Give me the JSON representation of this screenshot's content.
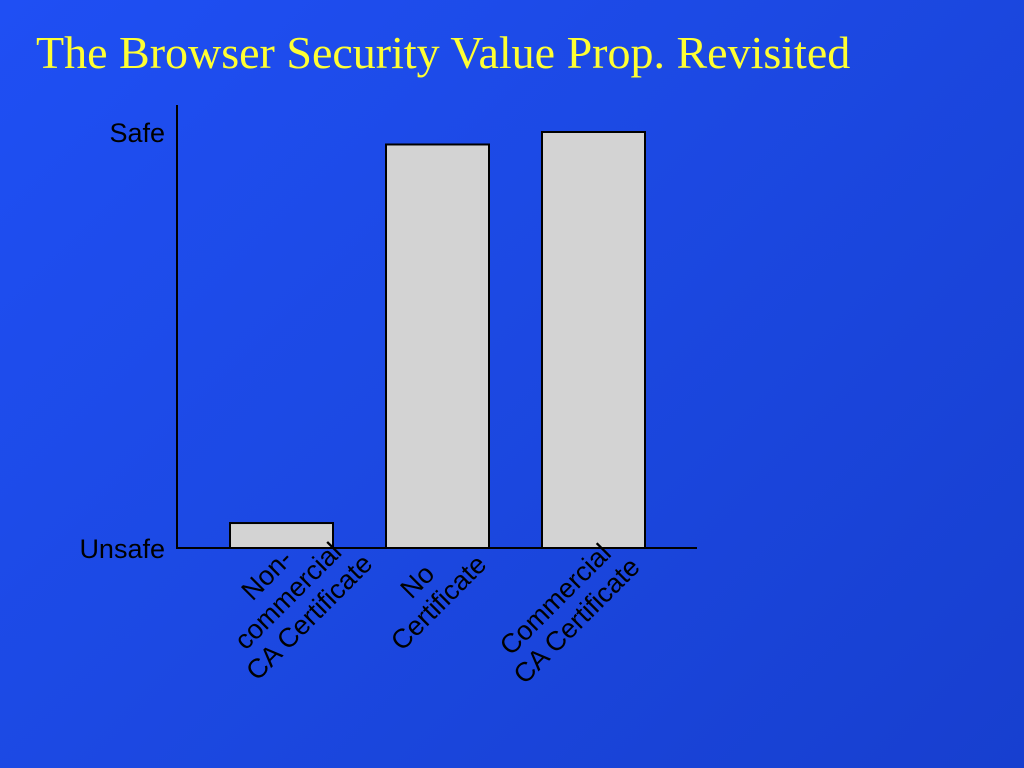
{
  "slide": {
    "title": "The Browser Security Value Prop. Revisited"
  },
  "chart_data": {
    "type": "bar",
    "title": "The Browser Security Value Prop. Revisited",
    "xlabel": "",
    "ylabel": "",
    "y_tick_labels": [
      "Unsafe",
      "Safe"
    ],
    "ylim": [
      0,
      100
    ],
    "grid": false,
    "legend": "none",
    "categories": [
      [
        "Non-",
        "commercial",
        "CA Certificate"
      ],
      [
        "No",
        "Certificate"
      ],
      [
        "Commercial",
        "CA Certificate"
      ]
    ],
    "values": [
      6,
      97,
      100
    ],
    "colors": {
      "bar_fill": "#d3d3d3",
      "bar_stroke": "#000000",
      "axis": "#000000",
      "title": "#ffff33"
    }
  }
}
